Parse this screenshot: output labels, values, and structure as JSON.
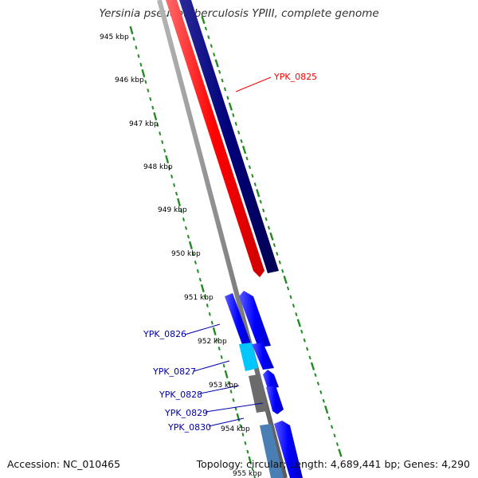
{
  "title": "Yersinia pseudotuberculosis YPIII, complete genome",
  "footer": {
    "accession": "Accession: NC_010465",
    "summary": "Topology: circular; Length: 4,689,441 bp; Genes: 4,290"
  },
  "ticks": [
    "945 kbp",
    "946 kbp",
    "947 kbp",
    "948 kbp",
    "949 kbp",
    "950 kbp",
    "951 kbp",
    "952 kbp",
    "953 kbp",
    "954 kbp",
    "955 kbp"
  ],
  "genes": [
    {
      "label": "YPK_0825",
      "color": "#ff0000"
    },
    {
      "label": "YPK_0826",
      "color": "#0000aa"
    },
    {
      "label": "YPK_0827",
      "color": "#0000aa"
    },
    {
      "label": "YPK_0828",
      "color": "#0000aa"
    },
    {
      "label": "YPK_0829",
      "color": "#0000aa"
    },
    {
      "label": "YPK_0830",
      "color": "#0000aa"
    }
  ],
  "colors": {
    "ruler": "#228b22",
    "backbone": "#8a8a8a",
    "forward_strand": "#0000ff",
    "reverse_strand": "#ff0000",
    "dark_strand": "#00007a",
    "cyan_feature": "#00c8ff",
    "gray_feature": "#6b6b6b",
    "steel_feature": "#4a7fb5"
  }
}
